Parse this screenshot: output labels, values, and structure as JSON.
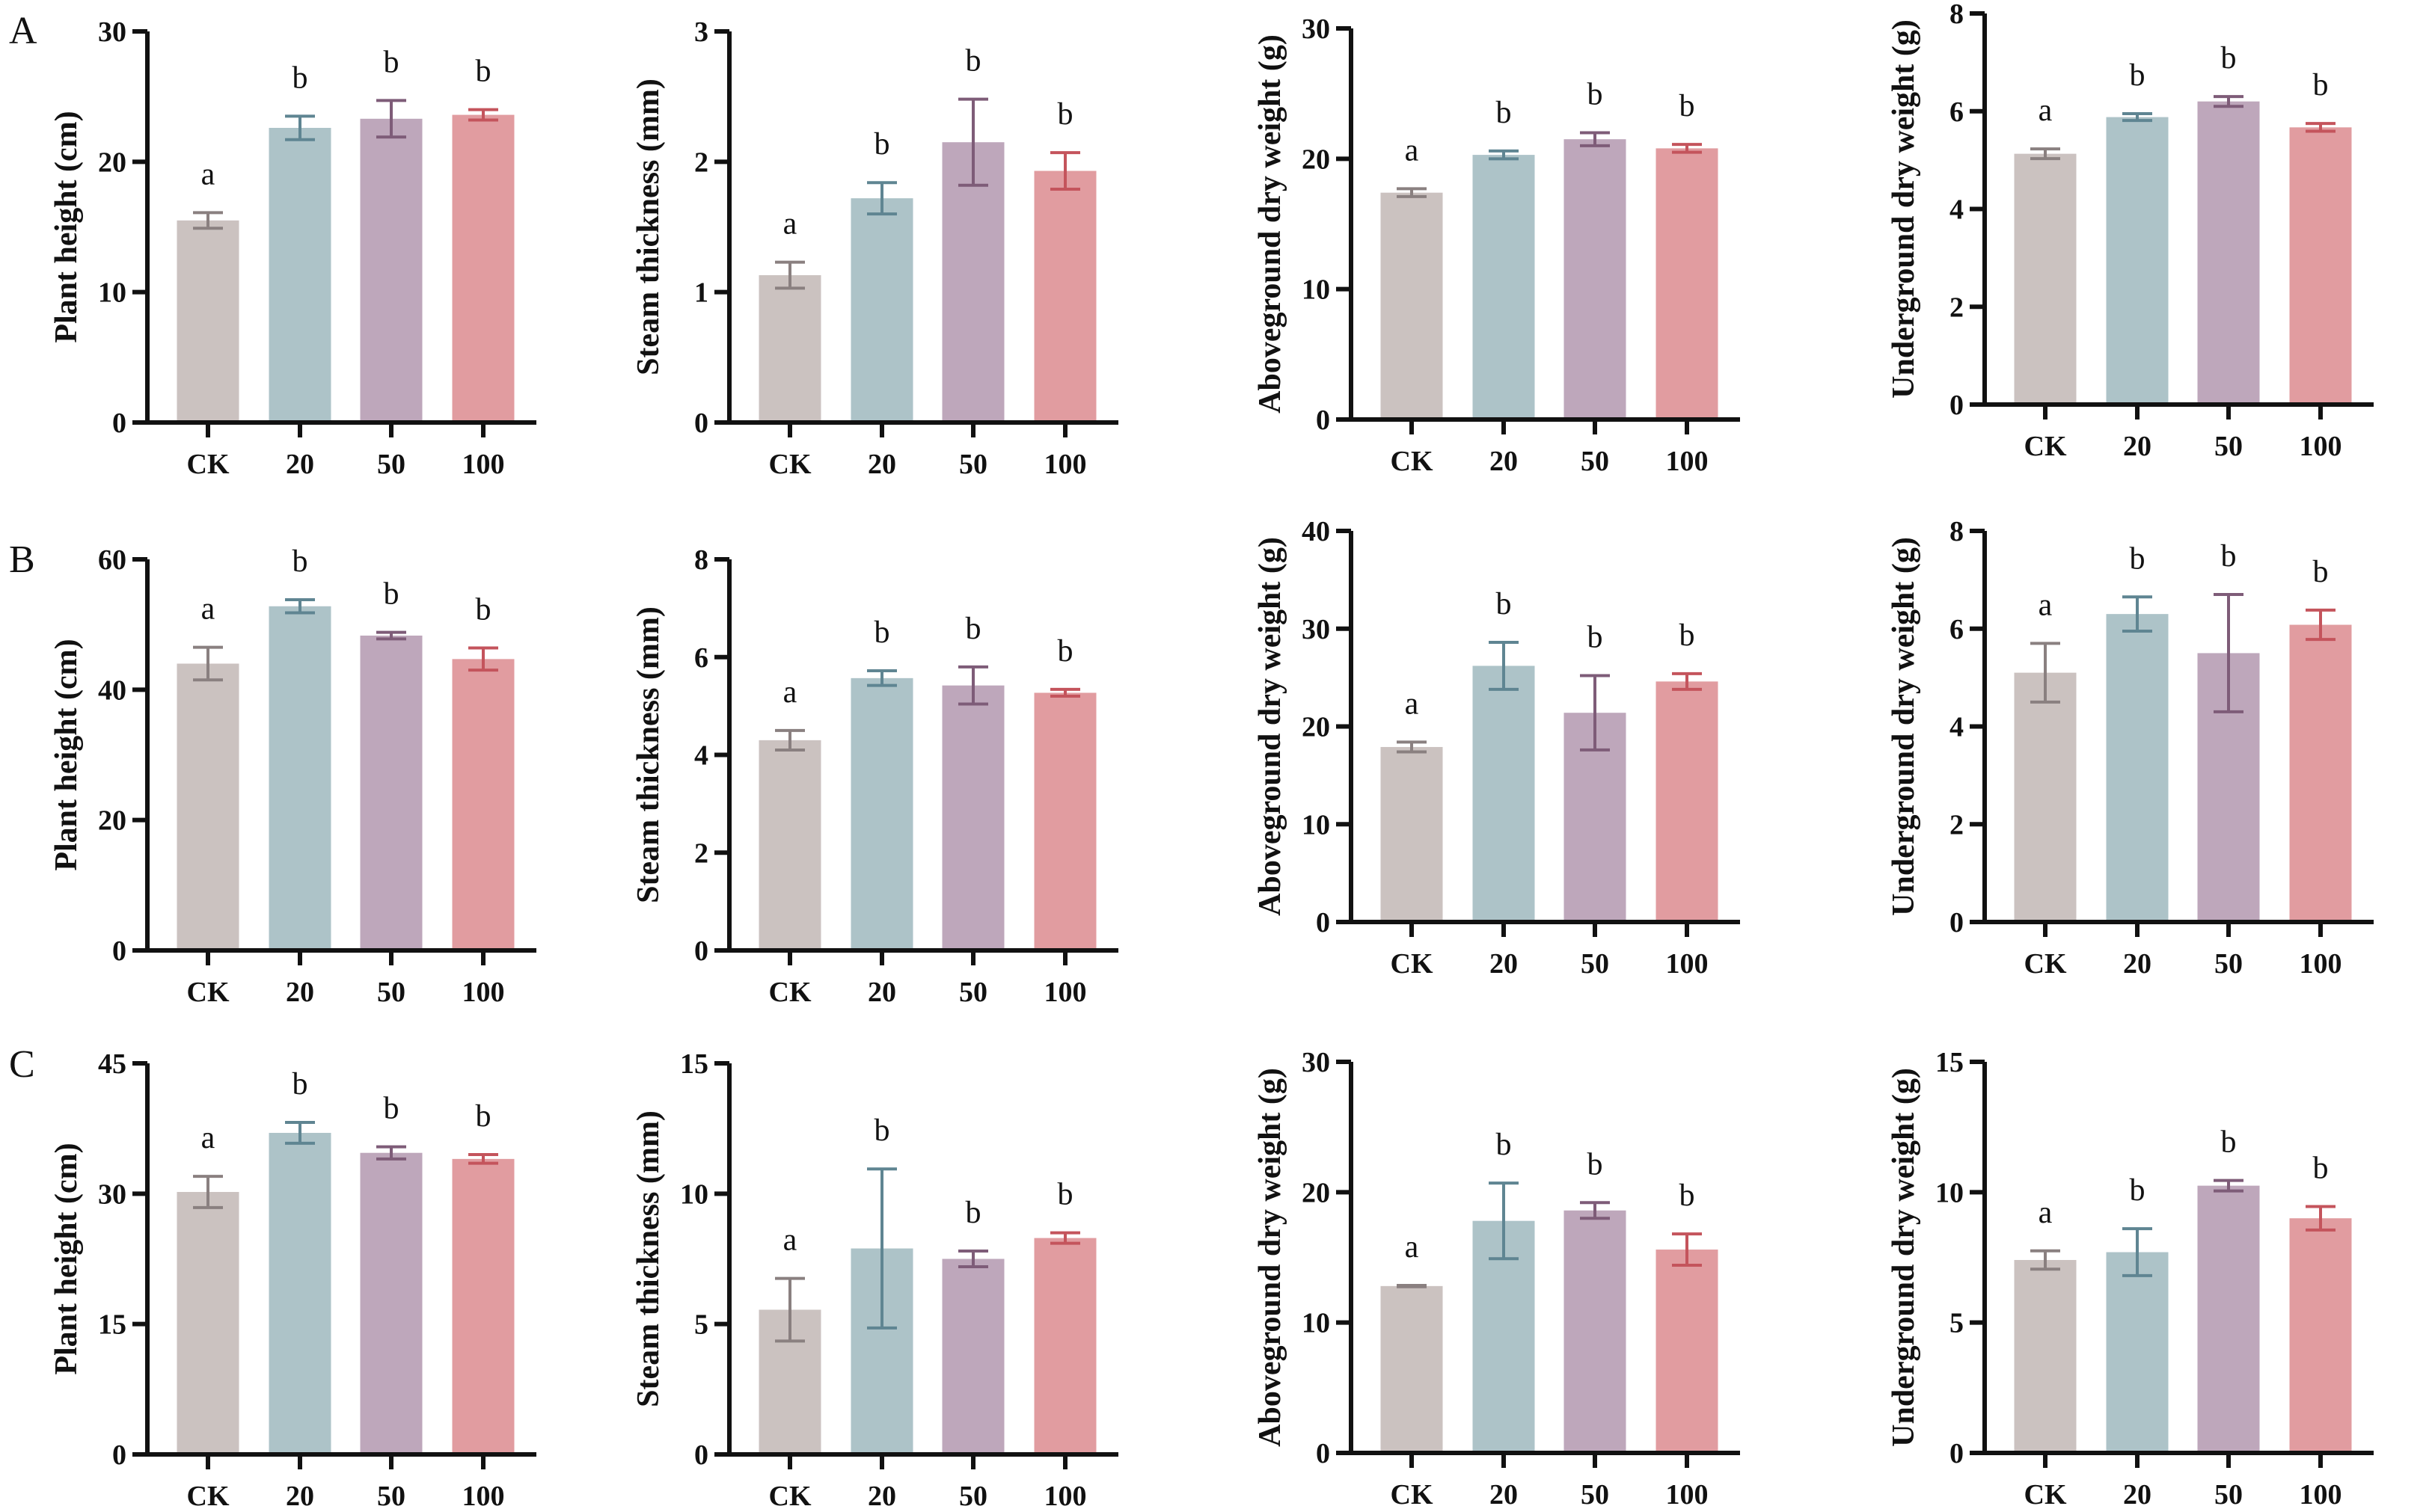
{
  "chart_data": {
    "type": "bar",
    "categories": [
      "CK",
      "20",
      "50",
      "100"
    ],
    "colors": [
      "#cbc2c0",
      "#adc3c8",
      "#bea7bb",
      "#e19ca0"
    ],
    "error_colors": [
      "#8a8080",
      "#5f8592",
      "#7e5c78",
      "#c4545c"
    ],
    "rows": [
      {
        "label": "A",
        "panels": [
          {
            "ylabel": "Plant height (cm)",
            "ylim": [
              0,
              30
            ],
            "yticks": [
              0,
              10,
              20,
              30
            ],
            "values": [
              15.5,
              22.6,
              23.3,
              23.6
            ],
            "errors": [
              0.6,
              0.9,
              1.4,
              0.4
            ],
            "letters": [
              "a",
              "b",
              "b",
              "b"
            ]
          },
          {
            "ylabel": "Steam thickness (mm)",
            "ylim": [
              0,
              3
            ],
            "yticks": [
              0,
              1,
              2,
              3
            ],
            "values": [
              1.13,
              1.72,
              2.15,
              1.93
            ],
            "errors": [
              0.1,
              0.12,
              0.33,
              0.14
            ],
            "letters": [
              "a",
              "b",
              "b",
              "b"
            ]
          },
          {
            "ylabel": "Aboveground dry weight (g)",
            "ylim": [
              0,
              30
            ],
            "yticks": [
              0,
              10,
              20,
              30
            ],
            "values": [
              17.4,
              20.3,
              21.5,
              20.8
            ],
            "errors": [
              0.3,
              0.3,
              0.5,
              0.3
            ],
            "letters": [
              "a",
              "b",
              "b",
              "b"
            ]
          },
          {
            "ylabel": "Underground dry weight (g)",
            "ylim": [
              0,
              8
            ],
            "yticks": [
              0,
              2,
              4,
              6,
              8
            ],
            "values": [
              5.13,
              5.88,
              6.2,
              5.67
            ],
            "errors": [
              0.1,
              0.07,
              0.1,
              0.08
            ],
            "letters": [
              "a",
              "b",
              "b",
              "b"
            ]
          }
        ]
      },
      {
        "label": "B",
        "panels": [
          {
            "ylabel": "Plant height (cm)",
            "ylim": [
              0,
              60
            ],
            "yticks": [
              0,
              20,
              40,
              60
            ],
            "values": [
              44.0,
              52.8,
              48.3,
              44.7
            ],
            "errors": [
              2.5,
              1.0,
              0.5,
              1.7
            ],
            "letters": [
              "a",
              "b",
              "b",
              "b"
            ]
          },
          {
            "ylabel": "Steam thickness (mm)",
            "ylim": [
              0,
              8
            ],
            "yticks": [
              0,
              2,
              4,
              6,
              8
            ],
            "values": [
              4.3,
              5.57,
              5.42,
              5.27
            ],
            "errors": [
              0.2,
              0.15,
              0.38,
              0.07
            ],
            "letters": [
              "a",
              "b",
              "b",
              "b"
            ]
          },
          {
            "ylabel": "Aboveground dry weight (g)",
            "ylim": [
              0,
              40
            ],
            "yticks": [
              0,
              10,
              20,
              30,
              40
            ],
            "values": [
              17.9,
              26.2,
              21.4,
              24.6
            ],
            "errors": [
              0.5,
              2.4,
              3.8,
              0.8
            ],
            "letters": [
              "a",
              "b",
              "b",
              "b"
            ]
          },
          {
            "ylabel": "Underground dry weight (g)",
            "ylim": [
              0,
              8
            ],
            "yticks": [
              0,
              2,
              4,
              6,
              8
            ],
            "values": [
              5.1,
              6.3,
              5.5,
              6.08
            ],
            "errors": [
              0.6,
              0.35,
              1.2,
              0.3
            ],
            "letters": [
              "a",
              "b",
              "b",
              "b"
            ]
          }
        ]
      },
      {
        "label": "C",
        "panels": [
          {
            "ylabel": "Plant height (cm)",
            "ylim": [
              0,
              45
            ],
            "yticks": [
              0,
              15,
              30,
              45
            ],
            "values": [
              30.2,
              37.0,
              34.7,
              34.0
            ],
            "errors": [
              1.8,
              1.2,
              0.7,
              0.5
            ],
            "letters": [
              "a",
              "b",
              "b",
              "b"
            ]
          },
          {
            "ylabel": "Steam thickness (mm)",
            "ylim": [
              0,
              15
            ],
            "yticks": [
              0,
              5,
              10,
              15
            ],
            "values": [
              5.55,
              7.9,
              7.5,
              8.3
            ],
            "errors": [
              1.2,
              3.05,
              0.3,
              0.2
            ],
            "letters": [
              "a",
              "b",
              "b",
              "b"
            ]
          },
          {
            "ylabel": "Aboveground dry weight (g)",
            "ylim": [
              0,
              30
            ],
            "yticks": [
              0,
              10,
              20,
              30
            ],
            "values": [
              12.8,
              17.8,
              18.6,
              15.6
            ],
            "errors": [
              0.05,
              2.9,
              0.6,
              1.2
            ],
            "letters": [
              "a",
              "b",
              "b",
              "b"
            ]
          },
          {
            "ylabel": "Underground dry weight (g)",
            "ylim": [
              0,
              15
            ],
            "yticks": [
              0,
              5,
              10,
              15
            ],
            "values": [
              7.4,
              7.7,
              10.25,
              9.0
            ],
            "errors": [
              0.35,
              0.9,
              0.2,
              0.45
            ],
            "letters": [
              "a",
              "b",
              "b",
              "b"
            ]
          }
        ]
      }
    ]
  }
}
